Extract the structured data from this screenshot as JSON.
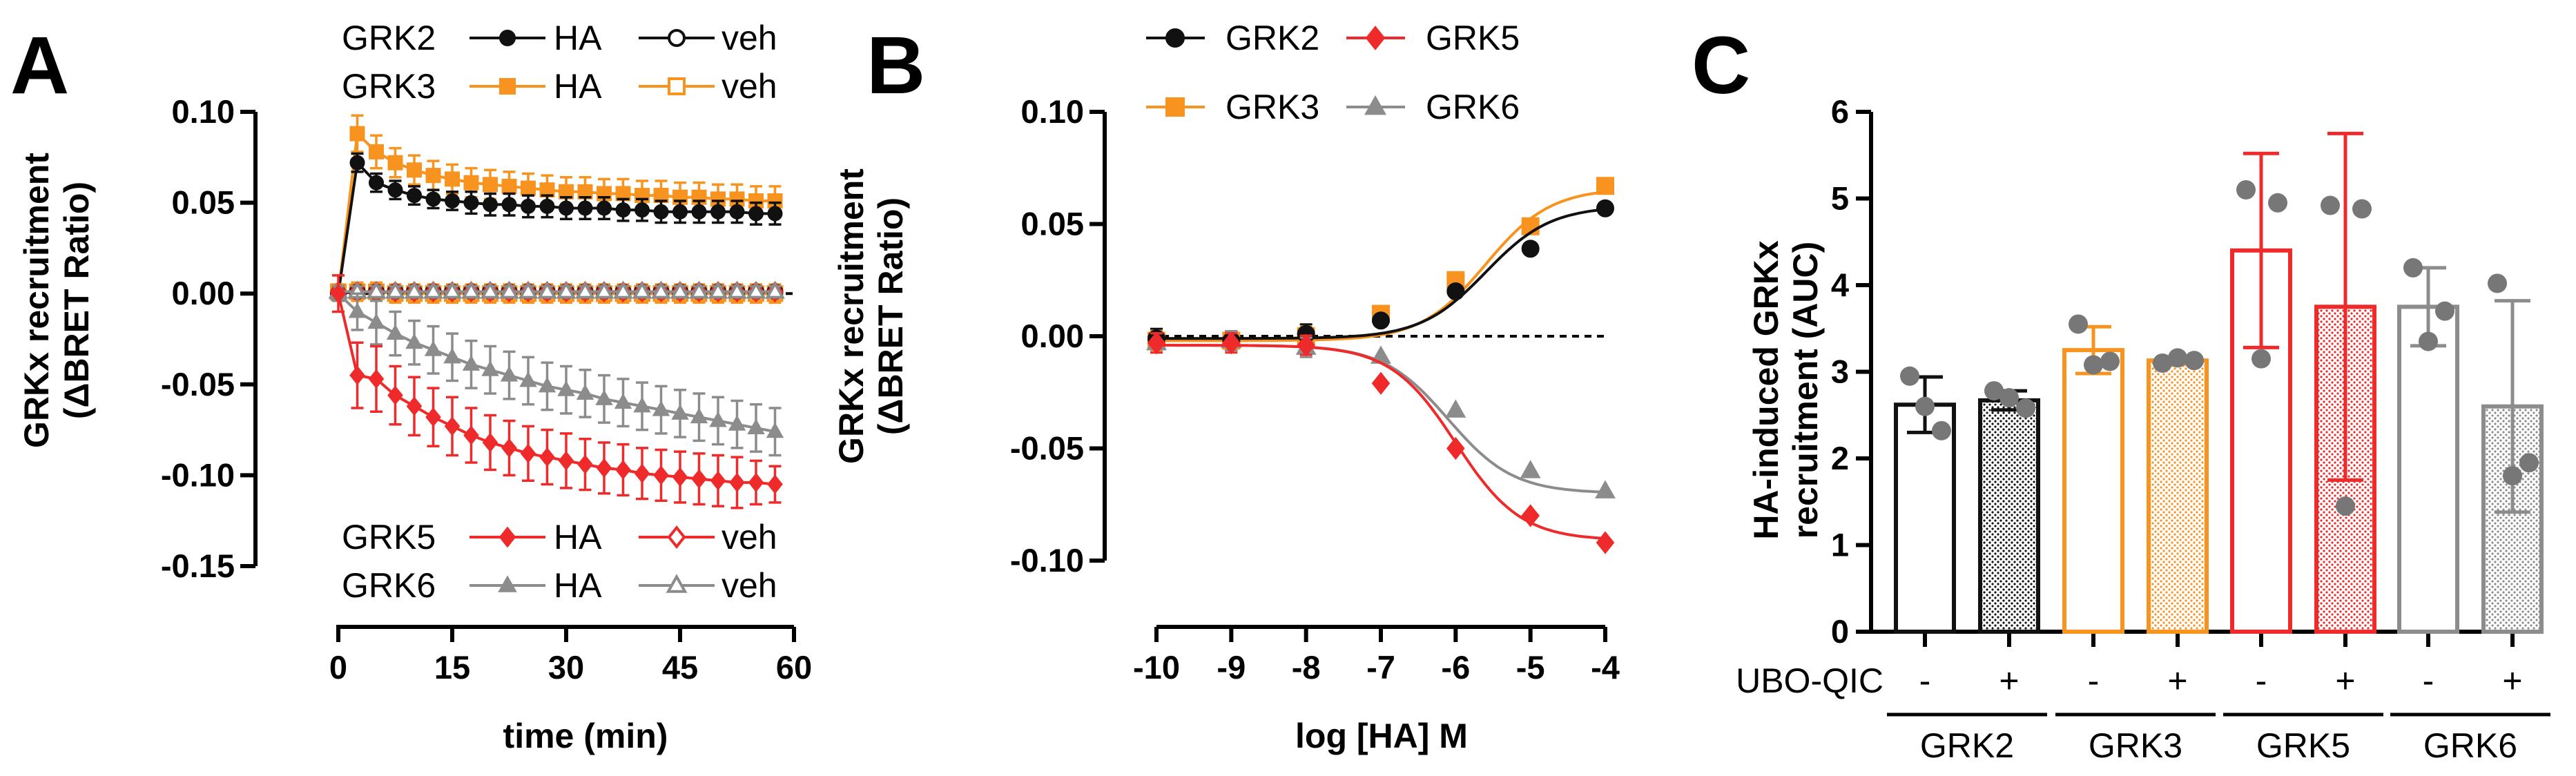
{
  "chart_data": [
    {
      "panel": "A",
      "type": "line",
      "xlabel": "time (min)",
      "ylabel_line1": "GRKx recruitment",
      "ylabel_line2": "(ΔBRET Ratio)",
      "xlim": [
        0,
        60
      ],
      "ylim": [
        -0.15,
        0.1
      ],
      "xticks": [
        "0",
        "15",
        "30",
        "45",
        "60"
      ],
      "yticks": [
        "0.10",
        "0.05",
        "0.00",
        "-0.05",
        "-0.10",
        "-0.15"
      ],
      "x": [
        0,
        2.5,
        5,
        7.5,
        10,
        12.5,
        15,
        17.5,
        20,
        22.5,
        25,
        27.5,
        30,
        32.5,
        35,
        37.5,
        40,
        42.5,
        45,
        47.5,
        50,
        52.5,
        55,
        57.5
      ],
      "legend_top": [
        {
          "name": "GRK2",
          "ha": "HA",
          "veh": "veh",
          "color": "#111111"
        },
        {
          "name": "GRK3",
          "ha": "HA",
          "veh": "veh",
          "color": "#f7931e"
        }
      ],
      "legend_bottom": [
        {
          "name": "GRK5",
          "ha": "HA",
          "veh": "veh",
          "color": "#ee2a2a"
        },
        {
          "name": "GRK6",
          "ha": "HA",
          "veh": "veh",
          "color": "#8c8c8c"
        }
      ],
      "series": [
        {
          "name": "GRK3 HA",
          "color": "#f7931e",
          "marker": "square",
          "filled": true,
          "values": [
            0,
            0.088,
            0.078,
            0.072,
            0.068,
            0.065,
            0.063,
            0.061,
            0.06,
            0.059,
            0.058,
            0.057,
            0.056,
            0.056,
            0.055,
            0.055,
            0.054,
            0.054,
            0.053,
            0.053,
            0.052,
            0.052,
            0.051,
            0.051
          ],
          "err": [
            0.004,
            0.01,
            0.009,
            0.008,
            0.008,
            0.008,
            0.008,
            0.008,
            0.008,
            0.008,
            0.008,
            0.008,
            0.008,
            0.008,
            0.008,
            0.008,
            0.008,
            0.008,
            0.008,
            0.008,
            0.008,
            0.008,
            0.008,
            0.008
          ]
        },
        {
          "name": "GRK2 HA",
          "color": "#111111",
          "marker": "circle",
          "filled": true,
          "values": [
            0,
            0.072,
            0.061,
            0.057,
            0.054,
            0.052,
            0.051,
            0.05,
            0.049,
            0.049,
            0.048,
            0.048,
            0.047,
            0.047,
            0.047,
            0.046,
            0.046,
            0.045,
            0.045,
            0.045,
            0.045,
            0.045,
            0.044,
            0.044
          ],
          "err": [
            0.004,
            0.005,
            0.005,
            0.005,
            0.005,
            0.005,
            0.005,
            0.006,
            0.006,
            0.006,
            0.006,
            0.006,
            0.006,
            0.006,
            0.006,
            0.006,
            0.006,
            0.006,
            0.006,
            0.006,
            0.006,
            0.006,
            0.006,
            0.006
          ]
        },
        {
          "name": "GRK3 veh",
          "color": "#f7931e",
          "marker": "square",
          "filled": false,
          "values": [
            0.001,
            0.001,
            0.001,
            0.0,
            0.0,
            0.0,
            0.0,
            0.0,
            0.0,
            0.0,
            0.0,
            0.0,
            0.0,
            0.0,
            0.0,
            0.0,
            0.0,
            0.0,
            0.0,
            0.0,
            0.0,
            0.0,
            0.0,
            0.0
          ],
          "err": [
            0.004,
            0.005,
            0.005,
            0.005,
            0.005,
            0.005,
            0.005,
            0.005,
            0.005,
            0.005,
            0.005,
            0.005,
            0.005,
            0.005,
            0.005,
            0.005,
            0.005,
            0.005,
            0.005,
            0.005,
            0.005,
            0.005,
            0.005,
            0.005
          ]
        },
        {
          "name": "GRK2 veh",
          "color": "#111111",
          "marker": "circle",
          "filled": false,
          "values": [
            0,
            0.001,
            0.001,
            0.001,
            0.001,
            0.001,
            0.001,
            0.001,
            0.001,
            0.001,
            0.001,
            0.001,
            0.001,
            0.001,
            0.001,
            0.001,
            0.001,
            0.001,
            0.001,
            0.001,
            0.001,
            0.001,
            0.001,
            0.001
          ],
          "err": [
            0.003,
            0.003,
            0.003,
            0.003,
            0.003,
            0.003,
            0.003,
            0.003,
            0.003,
            0.003,
            0.003,
            0.003,
            0.003,
            0.003,
            0.003,
            0.003,
            0.003,
            0.003,
            0.003,
            0.003,
            0.003,
            0.003,
            0.003,
            0.003
          ]
        },
        {
          "name": "GRK5 veh",
          "color": "#ee2a2a",
          "marker": "diamond",
          "filled": false,
          "values": [
            0.001,
            0.001,
            0.001,
            0.001,
            0.001,
            0.001,
            0.001,
            0.001,
            0.001,
            0.001,
            0.001,
            0.001,
            0.001,
            0.001,
            0.001,
            0.001,
            0.001,
            0.001,
            0.001,
            0.001,
            0.001,
            0.001,
            0.001,
            0.001
          ],
          "err": [
            0.003,
            0.003,
            0.003,
            0.003,
            0.003,
            0.003,
            0.003,
            0.003,
            0.003,
            0.003,
            0.003,
            0.003,
            0.003,
            0.003,
            0.003,
            0.003,
            0.003,
            0.003,
            0.003,
            0.003,
            0.003,
            0.003,
            0.003,
            0.003
          ]
        },
        {
          "name": "GRK6 veh",
          "color": "#8c8c8c",
          "marker": "triangle",
          "filled": false,
          "values": [
            0.001,
            0.001,
            0.001,
            0.001,
            0.001,
            0.001,
            0.001,
            0.001,
            0.001,
            0.001,
            0.001,
            0.001,
            0.001,
            0.001,
            0.001,
            0.001,
            0.001,
            0.001,
            0.001,
            0.001,
            0.001,
            0.001,
            0.001,
            0.001
          ],
          "err": [
            0.003,
            0.003,
            0.003,
            0.003,
            0.003,
            0.003,
            0.003,
            0.003,
            0.003,
            0.003,
            0.003,
            0.003,
            0.003,
            0.003,
            0.003,
            0.003,
            0.003,
            0.003,
            0.003,
            0.003,
            0.003,
            0.003,
            0.003,
            0.003
          ]
        },
        {
          "name": "GRK6 HA",
          "color": "#8c8c8c",
          "marker": "triangle",
          "filled": true,
          "values": [
            0,
            -0.01,
            -0.016,
            -0.022,
            -0.027,
            -0.031,
            -0.035,
            -0.039,
            -0.042,
            -0.045,
            -0.048,
            -0.051,
            -0.053,
            -0.055,
            -0.058,
            -0.06,
            -0.062,
            -0.064,
            -0.066,
            -0.068,
            -0.07,
            -0.072,
            -0.074,
            -0.076
          ],
          "err": [
            0.004,
            0.01,
            0.012,
            0.012,
            0.012,
            0.013,
            0.013,
            0.013,
            0.013,
            0.013,
            0.013,
            0.013,
            0.013,
            0.013,
            0.013,
            0.013,
            0.013,
            0.013,
            0.013,
            0.013,
            0.013,
            0.013,
            0.013,
            0.013
          ]
        },
        {
          "name": "GRK5 HA",
          "color": "#ee2a2a",
          "marker": "diamond",
          "filled": true,
          "values": [
            0,
            -0.045,
            -0.047,
            -0.056,
            -0.062,
            -0.068,
            -0.073,
            -0.078,
            -0.082,
            -0.085,
            -0.088,
            -0.09,
            -0.092,
            -0.094,
            -0.096,
            -0.097,
            -0.099,
            -0.1,
            -0.101,
            -0.102,
            -0.103,
            -0.104,
            -0.104,
            -0.105
          ],
          "err": [
            0.01,
            0.018,
            0.018,
            0.016,
            0.016,
            0.016,
            0.016,
            0.015,
            0.015,
            0.015,
            0.015,
            0.015,
            0.015,
            0.014,
            0.014,
            0.014,
            0.014,
            0.014,
            0.014,
            0.014,
            0.014,
            0.014,
            0.012,
            0.01
          ]
        }
      ]
    },
    {
      "panel": "B",
      "type": "scatter",
      "xlabel": "log [HA] M",
      "ylabel_line1": "GRKx recruitment",
      "ylabel_line2": "(ΔBRET Ratio)",
      "xlim": [
        -10,
        -4
      ],
      "ylim": [
        -0.1,
        0.1
      ],
      "xticks": [
        "-10",
        "-9",
        "-8",
        "-7",
        "-6",
        "-5",
        "-4"
      ],
      "yticks": [
        "0.10",
        "0.05",
        "0.00",
        "-0.05",
        "-0.10"
      ],
      "x": [
        -10,
        -9,
        -8,
        -7,
        -6,
        -5,
        -4
      ],
      "legend": [
        {
          "name": "GRK2",
          "color": "#111111"
        },
        {
          "name": "GRK5",
          "color": "#ee2a2a"
        },
        {
          "name": "GRK3",
          "color": "#f7931e"
        },
        {
          "name": "GRK6",
          "color": "#8c8c8c"
        }
      ],
      "series": [
        {
          "name": "GRK3",
          "color": "#f7931e",
          "marker": "square",
          "values": [
            -0.002,
            -0.002,
            0.0,
            0.01,
            0.025,
            0.049,
            0.067
          ],
          "fit": {
            "bottom": -0.002,
            "top": 0.066,
            "logec50": -5.6,
            "hill": 1
          }
        },
        {
          "name": "GRK2",
          "color": "#111111",
          "marker": "circle",
          "values": [
            -0.001,
            -0.002,
            0.001,
            0.007,
            0.02,
            0.039,
            0.057
          ],
          "fit": {
            "bottom": -0.001,
            "top": 0.058,
            "logec50": -5.6,
            "hill": 1
          }
        },
        {
          "name": "GRK6",
          "color": "#8c8c8c",
          "marker": "triangle",
          "values": [
            -0.003,
            -0.002,
            -0.005,
            -0.009,
            -0.033,
            -0.06,
            -0.069
          ],
          "fit": {
            "bottom": -0.004,
            "top": -0.07,
            "logec50": -6.1,
            "hill": 1
          }
        },
        {
          "name": "GRK5",
          "color": "#ee2a2a",
          "marker": "diamond",
          "values": [
            -0.003,
            -0.003,
            -0.004,
            -0.021,
            -0.05,
            -0.08,
            -0.092
          ],
          "fit": {
            "bottom": -0.004,
            "top": -0.091,
            "logec50": -6.0,
            "hill": 1
          }
        }
      ]
    },
    {
      "panel": "C",
      "type": "bar",
      "ylabel_line1": "HA-induced GRKx",
      "ylabel_line2": "recruitment (AUC)",
      "ylim": [
        0,
        6
      ],
      "yticks": [
        "0",
        "1",
        "2",
        "3",
        "4",
        "5",
        "6"
      ],
      "treatment_label": "UBO-QIC",
      "treatment_signs": [
        "-",
        "+",
        "-",
        "+",
        "-",
        "+",
        "-",
        "+"
      ],
      "groups": [
        "GRK2",
        "GRK3",
        "GRK5",
        "GRK6"
      ],
      "bars": [
        {
          "group": "GRK2",
          "treatment": "-",
          "color": "#111111",
          "hatched": false,
          "value": 2.62,
          "sd": 0.32,
          "points": [
            2.95,
            2.6,
            2.32
          ]
        },
        {
          "group": "GRK2",
          "treatment": "+",
          "color": "#111111",
          "hatched": true,
          "value": 2.67,
          "sd": 0.11,
          "points": [
            2.78,
            2.7,
            2.58
          ]
        },
        {
          "group": "GRK3",
          "treatment": "-",
          "color": "#f7931e",
          "hatched": false,
          "value": 3.25,
          "sd": 0.27,
          "points": [
            3.55,
            3.08,
            3.12
          ]
        },
        {
          "group": "GRK3",
          "treatment": "+",
          "color": "#f7931e",
          "hatched": true,
          "value": 3.13,
          "sd": 0.04,
          "points": [
            3.1,
            3.16,
            3.13
          ]
        },
        {
          "group": "GRK5",
          "treatment": "-",
          "color": "#ee2a2a",
          "hatched": false,
          "value": 4.4,
          "sd": 1.12,
          "points": [
            5.1,
            3.15,
            4.95
          ]
        },
        {
          "group": "GRK5",
          "treatment": "+",
          "color": "#ee2a2a",
          "hatched": true,
          "value": 3.75,
          "sd": 2.0,
          "points": [
            4.92,
            1.45,
            4.88
          ]
        },
        {
          "group": "GRK6",
          "treatment": "-",
          "color": "#8c8c8c",
          "hatched": false,
          "value": 3.75,
          "sd": 0.45,
          "points": [
            4.2,
            3.35,
            3.7
          ]
        },
        {
          "group": "GRK6",
          "treatment": "+",
          "color": "#8c8c8c",
          "hatched": true,
          "value": 2.6,
          "sd": 1.22,
          "points": [
            4.02,
            1.8,
            1.95
          ]
        }
      ]
    }
  ]
}
